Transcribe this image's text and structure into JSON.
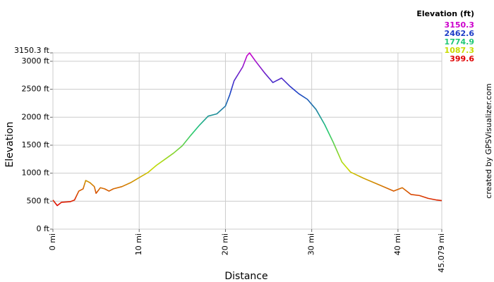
{
  "chart_data": {
    "type": "line",
    "x_label": "Distance",
    "y_label": "Elevation",
    "credit": "created by GPSVisualizer.com",
    "color_scale": {
      "title": "Elevation (ft)",
      "values": [
        3150.3,
        2462.6,
        1774.9,
        1087.3,
        399.6
      ],
      "colors": [
        "#cc00cc",
        "#1c3cc8",
        "#20c878",
        "#c8dc00",
        "#e00000"
      ]
    },
    "grid": true,
    "xlim": [
      0,
      45.079
    ],
    "ylim": [
      0,
      3150.3
    ],
    "xticks": [
      {
        "value": 0,
        "label": "0 mi"
      },
      {
        "value": 10,
        "label": "10 mi"
      },
      {
        "value": 20,
        "label": "20 mi"
      },
      {
        "value": 30,
        "label": "30 mi"
      },
      {
        "value": 40,
        "label": "40 mi"
      },
      {
        "value": 45.079,
        "label": "45.079 mi"
      }
    ],
    "yticks": [
      {
        "value": 0,
        "label": "0 ft"
      },
      {
        "value": 500,
        "label": "500 ft"
      },
      {
        "value": 1000,
        "label": "1000 ft"
      },
      {
        "value": 1500,
        "label": "1500 ft"
      },
      {
        "value": 2000,
        "label": "2000 ft"
      },
      {
        "value": 2500,
        "label": "2500 ft"
      },
      {
        "value": 3000,
        "label": "3000 ft"
      },
      {
        "value": 3150.3,
        "label": "3150.3 ft"
      }
    ],
    "x": [
      0,
      0.5,
      1,
      2,
      2.5,
      3,
      3.5,
      3.8,
      4.3,
      4.8,
      5,
      5.5,
      6,
      6.5,
      7,
      8,
      9,
      10,
      11,
      12,
      13,
      14,
      15,
      16,
      17,
      18,
      19,
      20,
      20.5,
      21,
      22,
      22.5,
      22.8,
      23.5,
      24.5,
      25.5,
      26.5,
      27.5,
      28.5,
      29.5,
      30.5,
      31.5,
      32.5,
      33.5,
      34.5,
      36,
      38,
      39.5,
      40.5,
      41.5,
      42.5,
      43.5,
      44.5,
      45.079
    ],
    "y": [
      520,
      420,
      480,
      490,
      520,
      680,
      720,
      870,
      830,
      760,
      640,
      740,
      720,
      680,
      720,
      760,
      830,
      920,
      1010,
      1140,
      1250,
      1360,
      1490,
      1680,
      1860,
      2020,
      2060,
      2200,
      2400,
      2650,
      2900,
      3100,
      3150.3,
      3000,
      2800,
      2620,
      2700,
      2550,
      2420,
      2320,
      2140,
      1870,
      1550,
      1200,
      1020,
      910,
      780,
      680,
      740,
      620,
      600,
      550,
      520,
      510
    ]
  }
}
